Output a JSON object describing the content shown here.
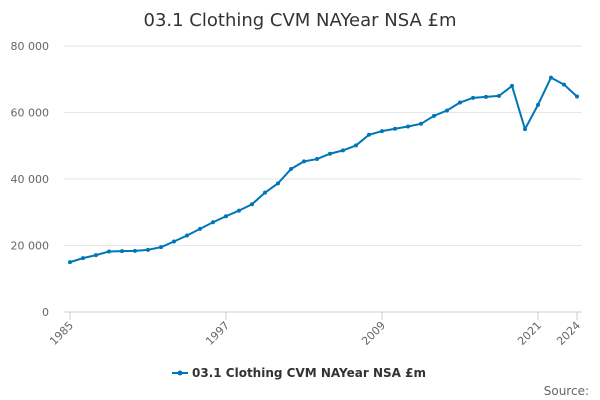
{
  "chart_data": {
    "type": "line",
    "title": "03.1 Clothing CVM NAYear NSA £m",
    "xlabel": "",
    "ylabel": "",
    "x": [
      1985,
      1986,
      1987,
      1988,
      1989,
      1990,
      1991,
      1992,
      1993,
      1994,
      1995,
      1996,
      1997,
      1998,
      1999,
      2000,
      2001,
      2002,
      2003,
      2004,
      2005,
      2006,
      2007,
      2008,
      2009,
      2010,
      2011,
      2012,
      2013,
      2014,
      2015,
      2016,
      2017,
      2018,
      2019,
      2020,
      2021,
      2022,
      2023,
      2024
    ],
    "series": [
      {
        "name": "03.1 Clothing CVM NAYear NSA £m",
        "color": "#0075b8",
        "values": [
          15000,
          16200,
          17100,
          18200,
          18300,
          18400,
          18700,
          19500,
          21200,
          23000,
          25000,
          27000,
          28800,
          30500,
          32400,
          35900,
          38700,
          43000,
          45300,
          46000,
          47600,
          48600,
          50100,
          53300,
          54400,
          55100,
          55800,
          56600,
          59000,
          60600,
          63000,
          64400,
          64700,
          65000,
          68000,
          55000,
          62300,
          70500,
          68400,
          64800
        ]
      }
    ],
    "ylim": [
      0,
      80000
    ],
    "yticks": [
      0,
      20000,
      40000,
      60000,
      80000
    ],
    "ytick_labels": [
      "0",
      "20 000",
      "40 000",
      "60 000",
      "80 000"
    ],
    "xticks": [
      1985,
      1997,
      2009,
      2021,
      2024
    ],
    "xtick_labels": [
      "1985",
      "1997",
      "2009",
      "2021",
      "2024"
    ],
    "grid": "horizontal",
    "legend": "bottom-center",
    "source_label": "Source:"
  }
}
